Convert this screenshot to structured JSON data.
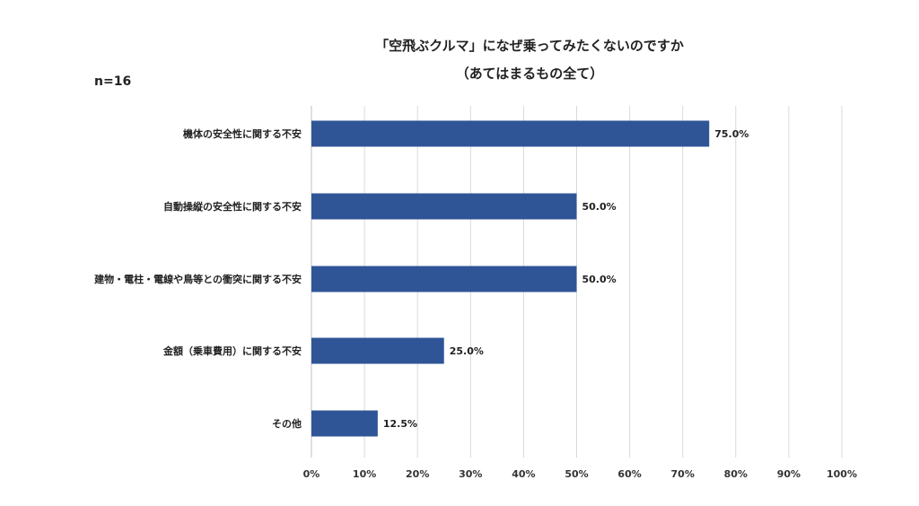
{
  "chart_data": {
    "type": "bar",
    "orientation": "horizontal",
    "title": "「空飛ぶクルマ」になぜ乗ってみたくないのですか",
    "subtitle": "（あてはまるもの全て）",
    "annotation": "n=16",
    "categories": [
      "機体の安全性に関する不安",
      "自動操縦の安全性に関する不安",
      "建物・電柱・電線や鳥等との衝突に関する不安",
      "金額（乗車費用）に関する不安",
      "その他"
    ],
    "values": [
      75.0,
      50.0,
      50.0,
      25.0,
      12.5
    ],
    "data_labels": [
      "75.0%",
      "50.0%",
      "50.0%",
      "25.0%",
      "12.5%"
    ],
    "xlim": [
      0,
      100
    ],
    "xticks": [
      "0%",
      "10%",
      "20%",
      "30%",
      "40%",
      "50%",
      "60%",
      "70%",
      "80%",
      "90%",
      "100%"
    ],
    "grid": true,
    "bar_color": "#2F5597"
  }
}
